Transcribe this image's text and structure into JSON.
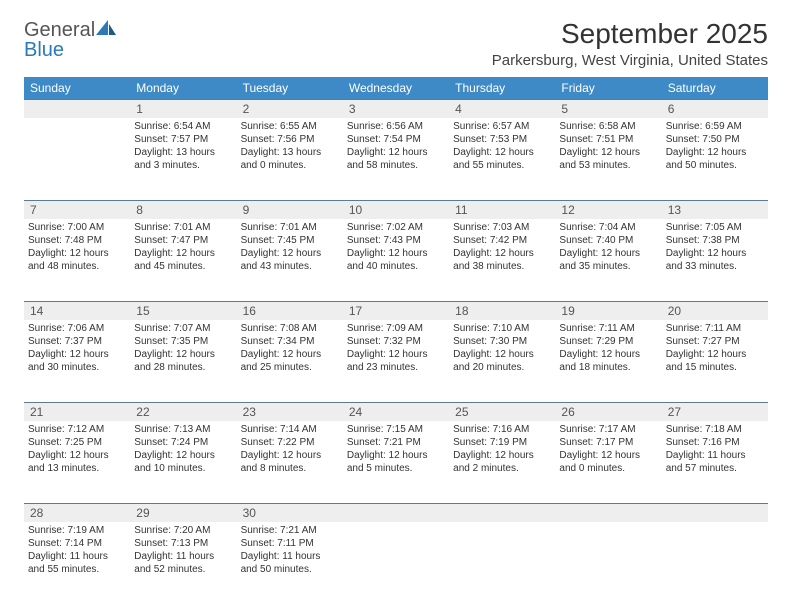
{
  "brand": {
    "name_gray": "General",
    "name_blue": "Blue"
  },
  "title": "September 2025",
  "location": "Parkersburg, West Virginia, United States",
  "colors": {
    "header_bg": "#3d8ac7",
    "header_text": "#ffffff",
    "daynum_bg": "#eeeeee",
    "daynum_border": "#5a7a95",
    "text": "#333333",
    "logo_gray": "#555555",
    "logo_blue": "#2a7ab9",
    "background": "#ffffff"
  },
  "typography": {
    "title_fontsize": 28,
    "location_fontsize": 15,
    "dayhead_fontsize": 12,
    "daynum_fontsize": 12,
    "cell_fontsize": 10
  },
  "day_names": [
    "Sunday",
    "Monday",
    "Tuesday",
    "Wednesday",
    "Thursday",
    "Friday",
    "Saturday"
  ],
  "weeks": [
    {
      "nums": [
        "",
        "1",
        "2",
        "3",
        "4",
        "5",
        "6"
      ],
      "cells": [
        {
          "sunrise": "",
          "sunset": "",
          "daylight1": "",
          "daylight2": ""
        },
        {
          "sunrise": "Sunrise: 6:54 AM",
          "sunset": "Sunset: 7:57 PM",
          "daylight1": "Daylight: 13 hours",
          "daylight2": "and 3 minutes."
        },
        {
          "sunrise": "Sunrise: 6:55 AM",
          "sunset": "Sunset: 7:56 PM",
          "daylight1": "Daylight: 13 hours",
          "daylight2": "and 0 minutes."
        },
        {
          "sunrise": "Sunrise: 6:56 AM",
          "sunset": "Sunset: 7:54 PM",
          "daylight1": "Daylight: 12 hours",
          "daylight2": "and 58 minutes."
        },
        {
          "sunrise": "Sunrise: 6:57 AM",
          "sunset": "Sunset: 7:53 PM",
          "daylight1": "Daylight: 12 hours",
          "daylight2": "and 55 minutes."
        },
        {
          "sunrise": "Sunrise: 6:58 AM",
          "sunset": "Sunset: 7:51 PM",
          "daylight1": "Daylight: 12 hours",
          "daylight2": "and 53 minutes."
        },
        {
          "sunrise": "Sunrise: 6:59 AM",
          "sunset": "Sunset: 7:50 PM",
          "daylight1": "Daylight: 12 hours",
          "daylight2": "and 50 minutes."
        }
      ]
    },
    {
      "nums": [
        "7",
        "8",
        "9",
        "10",
        "11",
        "12",
        "13"
      ],
      "cells": [
        {
          "sunrise": "Sunrise: 7:00 AM",
          "sunset": "Sunset: 7:48 PM",
          "daylight1": "Daylight: 12 hours",
          "daylight2": "and 48 minutes."
        },
        {
          "sunrise": "Sunrise: 7:01 AM",
          "sunset": "Sunset: 7:47 PM",
          "daylight1": "Daylight: 12 hours",
          "daylight2": "and 45 minutes."
        },
        {
          "sunrise": "Sunrise: 7:01 AM",
          "sunset": "Sunset: 7:45 PM",
          "daylight1": "Daylight: 12 hours",
          "daylight2": "and 43 minutes."
        },
        {
          "sunrise": "Sunrise: 7:02 AM",
          "sunset": "Sunset: 7:43 PM",
          "daylight1": "Daylight: 12 hours",
          "daylight2": "and 40 minutes."
        },
        {
          "sunrise": "Sunrise: 7:03 AM",
          "sunset": "Sunset: 7:42 PM",
          "daylight1": "Daylight: 12 hours",
          "daylight2": "and 38 minutes."
        },
        {
          "sunrise": "Sunrise: 7:04 AM",
          "sunset": "Sunset: 7:40 PM",
          "daylight1": "Daylight: 12 hours",
          "daylight2": "and 35 minutes."
        },
        {
          "sunrise": "Sunrise: 7:05 AM",
          "sunset": "Sunset: 7:38 PM",
          "daylight1": "Daylight: 12 hours",
          "daylight2": "and 33 minutes."
        }
      ]
    },
    {
      "nums": [
        "14",
        "15",
        "16",
        "17",
        "18",
        "19",
        "20"
      ],
      "cells": [
        {
          "sunrise": "Sunrise: 7:06 AM",
          "sunset": "Sunset: 7:37 PM",
          "daylight1": "Daylight: 12 hours",
          "daylight2": "and 30 minutes."
        },
        {
          "sunrise": "Sunrise: 7:07 AM",
          "sunset": "Sunset: 7:35 PM",
          "daylight1": "Daylight: 12 hours",
          "daylight2": "and 28 minutes."
        },
        {
          "sunrise": "Sunrise: 7:08 AM",
          "sunset": "Sunset: 7:34 PM",
          "daylight1": "Daylight: 12 hours",
          "daylight2": "and 25 minutes."
        },
        {
          "sunrise": "Sunrise: 7:09 AM",
          "sunset": "Sunset: 7:32 PM",
          "daylight1": "Daylight: 12 hours",
          "daylight2": "and 23 minutes."
        },
        {
          "sunrise": "Sunrise: 7:10 AM",
          "sunset": "Sunset: 7:30 PM",
          "daylight1": "Daylight: 12 hours",
          "daylight2": "and 20 minutes."
        },
        {
          "sunrise": "Sunrise: 7:11 AM",
          "sunset": "Sunset: 7:29 PM",
          "daylight1": "Daylight: 12 hours",
          "daylight2": "and 18 minutes."
        },
        {
          "sunrise": "Sunrise: 7:11 AM",
          "sunset": "Sunset: 7:27 PM",
          "daylight1": "Daylight: 12 hours",
          "daylight2": "and 15 minutes."
        }
      ]
    },
    {
      "nums": [
        "21",
        "22",
        "23",
        "24",
        "25",
        "26",
        "27"
      ],
      "cells": [
        {
          "sunrise": "Sunrise: 7:12 AM",
          "sunset": "Sunset: 7:25 PM",
          "daylight1": "Daylight: 12 hours",
          "daylight2": "and 13 minutes."
        },
        {
          "sunrise": "Sunrise: 7:13 AM",
          "sunset": "Sunset: 7:24 PM",
          "daylight1": "Daylight: 12 hours",
          "daylight2": "and 10 minutes."
        },
        {
          "sunrise": "Sunrise: 7:14 AM",
          "sunset": "Sunset: 7:22 PM",
          "daylight1": "Daylight: 12 hours",
          "daylight2": "and 8 minutes."
        },
        {
          "sunrise": "Sunrise: 7:15 AM",
          "sunset": "Sunset: 7:21 PM",
          "daylight1": "Daylight: 12 hours",
          "daylight2": "and 5 minutes."
        },
        {
          "sunrise": "Sunrise: 7:16 AM",
          "sunset": "Sunset: 7:19 PM",
          "daylight1": "Daylight: 12 hours",
          "daylight2": "and 2 minutes."
        },
        {
          "sunrise": "Sunrise: 7:17 AM",
          "sunset": "Sunset: 7:17 PM",
          "daylight1": "Daylight: 12 hours",
          "daylight2": "and 0 minutes."
        },
        {
          "sunrise": "Sunrise: 7:18 AM",
          "sunset": "Sunset: 7:16 PM",
          "daylight1": "Daylight: 11 hours",
          "daylight2": "and 57 minutes."
        }
      ]
    },
    {
      "nums": [
        "28",
        "29",
        "30",
        "",
        "",
        "",
        ""
      ],
      "cells": [
        {
          "sunrise": "Sunrise: 7:19 AM",
          "sunset": "Sunset: 7:14 PM",
          "daylight1": "Daylight: 11 hours",
          "daylight2": "and 55 minutes."
        },
        {
          "sunrise": "Sunrise: 7:20 AM",
          "sunset": "Sunset: 7:13 PM",
          "daylight1": "Daylight: 11 hours",
          "daylight2": "and 52 minutes."
        },
        {
          "sunrise": "Sunrise: 7:21 AM",
          "sunset": "Sunset: 7:11 PM",
          "daylight1": "Daylight: 11 hours",
          "daylight2": "and 50 minutes."
        },
        {
          "sunrise": "",
          "sunset": "",
          "daylight1": "",
          "daylight2": ""
        },
        {
          "sunrise": "",
          "sunset": "",
          "daylight1": "",
          "daylight2": ""
        },
        {
          "sunrise": "",
          "sunset": "",
          "daylight1": "",
          "daylight2": ""
        },
        {
          "sunrise": "",
          "sunset": "",
          "daylight1": "",
          "daylight2": ""
        }
      ]
    }
  ]
}
